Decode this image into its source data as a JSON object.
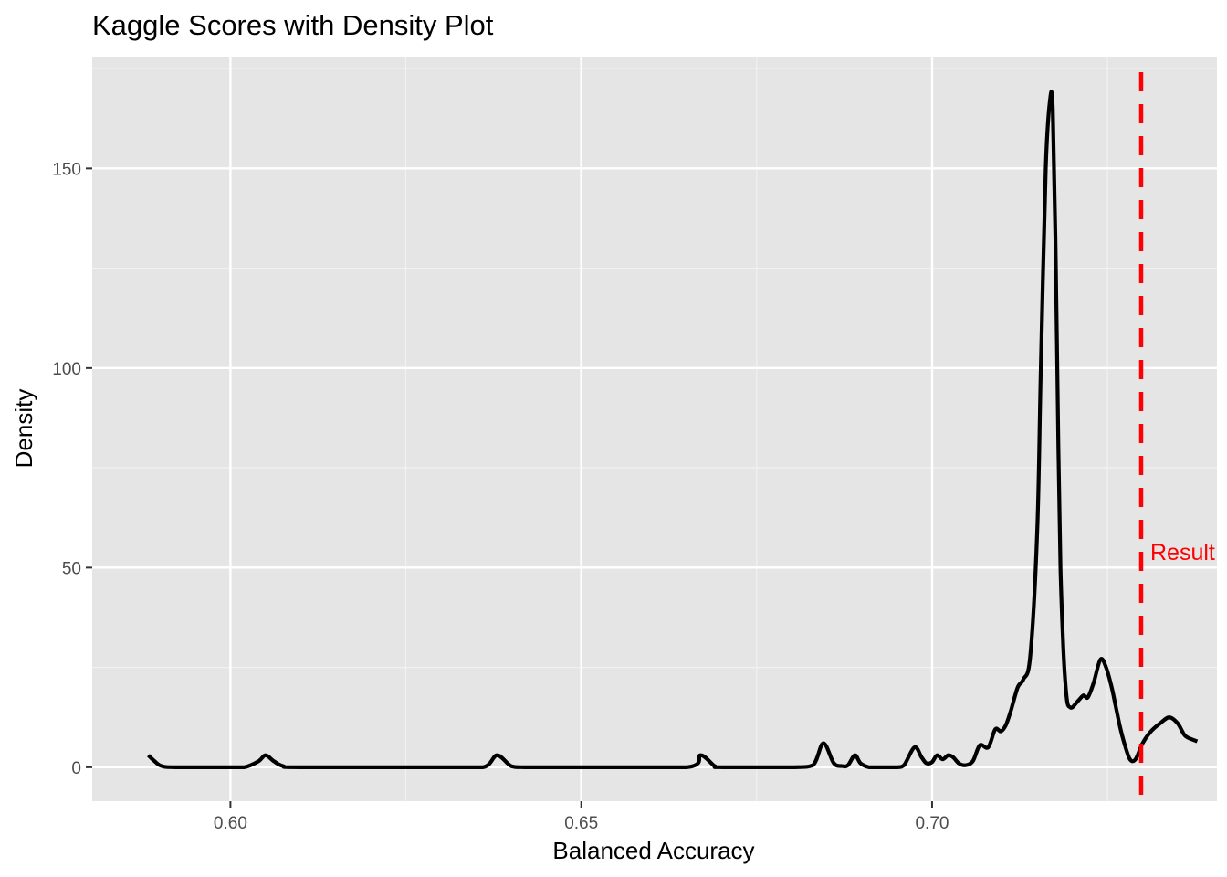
{
  "chart_data": {
    "type": "line",
    "title": "Kaggle Scores with Density Plot",
    "xlabel": "Balanced Accuracy",
    "ylabel": "Density",
    "xlim": [
      0.5803,
      0.7406
    ],
    "ylim": [
      -8.5,
      178
    ],
    "x_ticks": [
      0.6,
      0.65,
      0.7
    ],
    "x_tick_labels": [
      "0.60",
      "0.65",
      "0.70"
    ],
    "y_ticks": [
      0,
      50,
      100,
      150
    ],
    "y_tick_labels": [
      "0",
      "50",
      "100",
      "150"
    ],
    "grid": true,
    "series": [
      {
        "color": "#000000",
        "x": [
          0.5883,
          0.5892,
          0.5902,
          0.5922,
          0.6,
          0.602,
          0.604,
          0.605,
          0.6062,
          0.6075,
          0.61,
          0.63,
          0.636,
          0.638,
          0.64,
          0.642,
          0.65,
          0.665,
          0.667,
          0.669,
          0.67,
          0.68,
          0.683,
          0.6845,
          0.686,
          0.6872,
          0.688,
          0.689,
          0.6898,
          0.691,
          0.692,
          0.695,
          0.696,
          0.6975,
          0.6985,
          0.6992,
          0.7,
          0.7007,
          0.7015,
          0.7023,
          0.703,
          0.7038,
          0.7047,
          0.7058,
          0.7068,
          0.708,
          0.709,
          0.7098,
          0.7105,
          0.7112,
          0.7122,
          0.713,
          0.714,
          0.715,
          0.7155,
          0.7162,
          0.7168,
          0.7172,
          0.7176,
          0.718,
          0.7183,
          0.7187,
          0.719,
          0.7193,
          0.7197,
          0.72,
          0.7205,
          0.721,
          0.7216,
          0.7222,
          0.723,
          0.724,
          0.7248,
          0.7256,
          0.7262,
          0.7268,
          0.7274,
          0.7282,
          0.729,
          0.73,
          0.7312,
          0.7325,
          0.7338,
          0.735,
          0.736,
          0.737,
          0.7378
        ],
        "y": [
          3,
          1.5,
          0.3,
          0,
          0,
          0,
          1.5,
          3,
          1.5,
          0.3,
          0,
          0,
          0,
          3,
          0.3,
          0,
          0,
          0,
          3,
          0.3,
          0,
          0,
          0.5,
          6,
          1,
          0.3,
          0.5,
          3,
          1,
          0,
          0,
          0,
          0.5,
          5,
          2.5,
          1,
          1.3,
          3,
          2,
          3,
          2.5,
          1,
          0.5,
          1.5,
          5.5,
          5,
          9.5,
          9,
          10.5,
          14,
          20,
          22,
          28,
          60,
          100,
          150,
          167,
          165,
          130,
          80,
          50,
          30,
          21,
          16,
          15,
          15,
          16,
          17,
          18,
          17.5,
          21,
          27,
          25,
          20,
          15,
          10,
          6,
          2,
          2,
          6,
          9,
          11,
          12.5,
          11,
          8,
          7,
          6.5
        ]
      }
    ],
    "reference_line": {
      "x": 0.7298,
      "color": "#FF0000",
      "style": "dashed",
      "label": "Result",
      "label_y": 54
    }
  }
}
